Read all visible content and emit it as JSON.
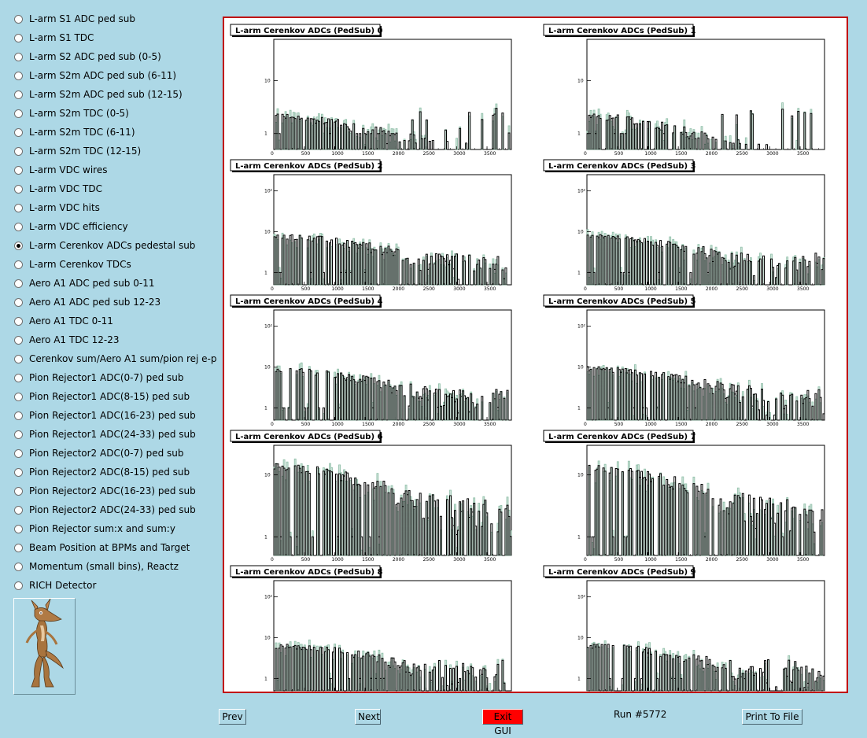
{
  "sidebar": {
    "selected_index": 12,
    "items": [
      "L-arm S1 ADC ped sub",
      "L-arm S1 TDC",
      "L-arm S2 ADC ped sub (0-5)",
      "L-arm S2m ADC ped sub (6-11)",
      "L-arm S2m ADC ped sub (12-15)",
      "L-arm S2m TDC (0-5)",
      "L-arm S2m TDC (6-11)",
      "L-arm S2m TDC (12-15)",
      "L-arm VDC wires",
      "L-arm VDC TDC",
      "L-arm VDC hits",
      "L-arm VDC efficiency",
      "L-arm Cerenkov ADCs pedestal sub",
      "L-arm Cerenkov TDCs",
      "Aero A1 ADC ped sub 0-11",
      "Aero A1 ADC ped sub 12-23",
      "Aero A1 TDC 0-11",
      "Aero A1 TDC 12-23",
      "Cerenkov sum/Aero A1 sum/pion rej e-p",
      "Pion Rejector1 ADC(0-7) ped sub",
      "Pion Rejector1 ADC(8-15) ped sub",
      "Pion Rejector1 ADC(16-23) ped sub",
      "Pion Rejector1 ADC(24-33) ped sub",
      "Pion Rejector2 ADC(0-7) ped sub",
      "Pion Rejector2 ADC(8-15) ped sub",
      "Pion Rejector2 ADC(16-23) ped sub",
      "Pion Rejector2 ADC(24-33) ped sub",
      "Pion Rejector sum:x and sum:y",
      "Beam Position at BPMs and Target",
      "Momentum (small bins), Reactz",
      "RICH Detector"
    ]
  },
  "logo": {
    "icon": "coyote-icon"
  },
  "buttons": {
    "prev": "Prev",
    "next": "Next",
    "exit": "Exit GUI",
    "print": "Print To File"
  },
  "run_label": "Run #5772",
  "colors": {
    "background": "#add8e6",
    "frame": "#c00000",
    "hist_line": "#000000",
    "hist_fill": "#8fbfa8",
    "exit": "#ff0000"
  },
  "chart_data": [
    {
      "type": "bar",
      "title": "L-arm Cerenkov ADCs (PedSub) 0",
      "x_ticks": [
        "0",
        "500",
        "1000",
        "1500",
        "2000",
        "2500",
        "3000",
        "3500"
      ],
      "y_ticks": [
        "1",
        "10"
      ],
      "log_y": true,
      "xlim": [
        0,
        3900
      ],
      "ylim": [
        0.5,
        60
      ],
      "shape": 0.15
    },
    {
      "type": "bar",
      "title": "L-arm Cerenkov ADCs (PedSub) 1",
      "x_ticks": [
        "0",
        "500",
        "1000",
        "1500",
        "2000",
        "2500",
        "3000",
        "3500"
      ],
      "y_ticks": [
        "1",
        "10"
      ],
      "log_y": true,
      "xlim": [
        0,
        3900
      ],
      "ylim": [
        0.5,
        60
      ],
      "shape": 0.15
    },
    {
      "type": "bar",
      "title": "L-arm Cerenkov ADCs (PedSub) 2",
      "x_ticks": [
        "0",
        "500",
        "1000",
        "1500",
        "2000",
        "2500",
        "3000",
        "3500"
      ],
      "y_ticks": [
        "1",
        "10",
        "10²"
      ],
      "log_y": true,
      "xlim": [
        0,
        3900
      ],
      "ylim": [
        0.5,
        250
      ],
      "shape": 0.55
    },
    {
      "type": "bar",
      "title": "L-arm Cerenkov ADCs (PedSub) 3",
      "x_ticks": [
        "0",
        "500",
        "1000",
        "1500",
        "2000",
        "2500",
        "3000",
        "3500"
      ],
      "y_ticks": [
        "1",
        "10",
        "10²"
      ],
      "log_y": true,
      "xlim": [
        0,
        3900
      ],
      "ylim": [
        0.5,
        250
      ],
      "shape": 0.55
    },
    {
      "type": "bar",
      "title": "L-arm Cerenkov ADCs (PedSub) 4",
      "x_ticks": [
        "0",
        "500",
        "1000",
        "1500",
        "2000",
        "2500",
        "3000",
        "3500"
      ],
      "y_ticks": [
        "1",
        "10",
        "10²"
      ],
      "log_y": true,
      "xlim": [
        0,
        3900
      ],
      "ylim": [
        0.5,
        250
      ],
      "shape": 0.6
    },
    {
      "type": "bar",
      "title": "L-arm Cerenkov ADCs (PedSub) 5",
      "x_ticks": [
        "0",
        "500",
        "1000",
        "1500",
        "2000",
        "2500",
        "3000",
        "3500"
      ],
      "y_ticks": [
        "1",
        "10",
        "10²"
      ],
      "log_y": true,
      "xlim": [
        0,
        3900
      ],
      "ylim": [
        0.5,
        250
      ],
      "shape": 0.65
    },
    {
      "type": "bar",
      "title": "L-arm Cerenkov ADCs (PedSub) 6",
      "x_ticks": [
        "0",
        "500",
        "1000",
        "1500",
        "2000",
        "2500",
        "3000",
        "3500"
      ],
      "y_ticks": [
        "1",
        "10"
      ],
      "log_y": true,
      "xlim": [
        0,
        3900
      ],
      "ylim": [
        0.5,
        30
      ],
      "shape": 0.95
    },
    {
      "type": "bar",
      "title": "L-arm Cerenkov ADCs (PedSub) 7",
      "x_ticks": [
        "0",
        "500",
        "1000",
        "1500",
        "2000",
        "2500",
        "3000",
        "3500"
      ],
      "y_ticks": [
        "1",
        "10"
      ],
      "log_y": true,
      "xlim": [
        0,
        3900
      ],
      "ylim": [
        0.5,
        30
      ],
      "shape": 0.9
    },
    {
      "type": "bar",
      "title": "L-arm Cerenkov ADCs (PedSub) 8",
      "x_ticks": [
        "0",
        "500",
        "1000",
        "1500",
        "2000",
        "2500",
        "3000",
        "3500"
      ],
      "y_ticks": [
        "1",
        "10",
        "10²"
      ],
      "log_y": true,
      "xlim": [
        0,
        3900
      ],
      "ylim": [
        0.5,
        250
      ],
      "shape": 0.45
    },
    {
      "type": "bar",
      "title": "L-arm Cerenkov ADCs (PedSub) 9",
      "x_ticks": [
        "0",
        "500",
        "1000",
        "1500",
        "2000",
        "2500",
        "3000",
        "3500"
      ],
      "y_ticks": [
        "1",
        "10",
        "10²"
      ],
      "log_y": true,
      "xlim": [
        0,
        3900
      ],
      "ylim": [
        0.5,
        250
      ],
      "shape": 0.45
    }
  ]
}
